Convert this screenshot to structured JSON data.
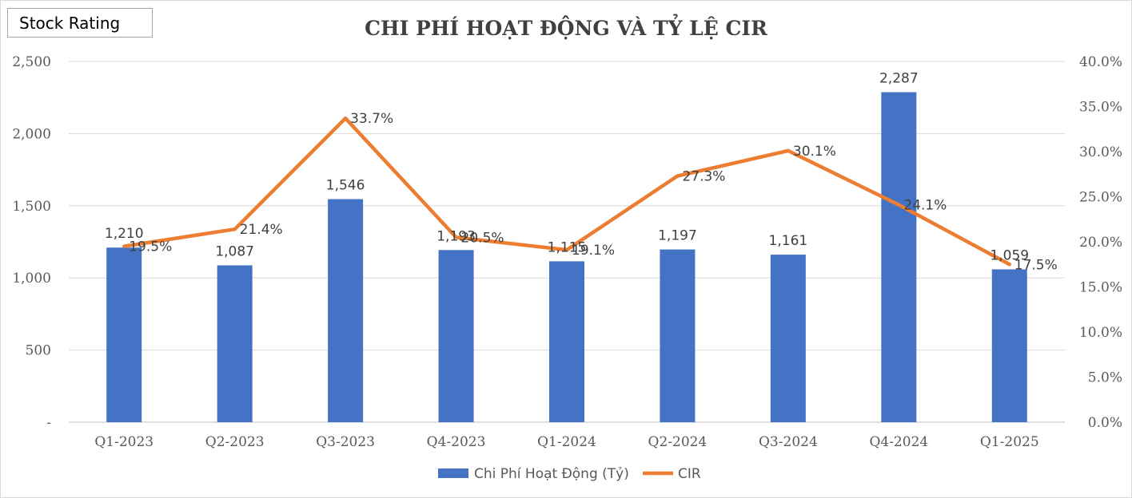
{
  "brand": {
    "label": "Stock Rating"
  },
  "chart_data": {
    "type": "bar",
    "title": "CHI PHÍ HOẠT ĐỘNG VÀ TỶ LỆ CIR",
    "categories": [
      "Q1-2023",
      "Q2-2023",
      "Q3-2023",
      "Q4-2023",
      "Q1-2024",
      "Q2-2024",
      "Q3-2024",
      "Q4-2024",
      "Q1-2025"
    ],
    "series": [
      {
        "name": "Chi Phí Hoạt Động (Tỷ)",
        "type": "bar",
        "axis": "left",
        "color": "#4472c4",
        "values": [
          1210,
          1087,
          1546,
          1193,
          1115,
          1197,
          1161,
          2287,
          1059
        ],
        "labels": [
          "1,210",
          "1,087",
          "1,546",
          "1,193",
          "1,115",
          "1,197",
          "1,161",
          "2,287",
          "1,059"
        ]
      },
      {
        "name": "CIR",
        "type": "line",
        "axis": "right",
        "color": "#ed7d31",
        "values": [
          19.5,
          21.4,
          33.7,
          20.5,
          19.1,
          27.3,
          30.1,
          24.1,
          17.5
        ],
        "labels": [
          "19.5%",
          "21.4%",
          "33.7%",
          "20.5%",
          "19.1%",
          "27.3%",
          "30.1%",
          "24.1%",
          "17.5%"
        ]
      }
    ],
    "y_left": {
      "ylim": [
        0,
        2500
      ],
      "ticks": [
        0,
        500,
        1000,
        1500,
        2000,
        2500
      ],
      "tick_labels": [
        "-",
        "500",
        "1,000",
        "1,500",
        "2,000",
        "2,500"
      ]
    },
    "y_right": {
      "ylim": [
        0,
        40
      ],
      "ticks": [
        0,
        5,
        10,
        15,
        20,
        25,
        30,
        35,
        40
      ],
      "tick_labels": [
        "0.0%",
        "5.0%",
        "10.0%",
        "15.0%",
        "20.0%",
        "25.0%",
        "30.0%",
        "35.0%",
        "40.0%"
      ]
    },
    "grid": true,
    "gridline_color": "#d9d9d9",
    "legend_position": "bottom"
  }
}
